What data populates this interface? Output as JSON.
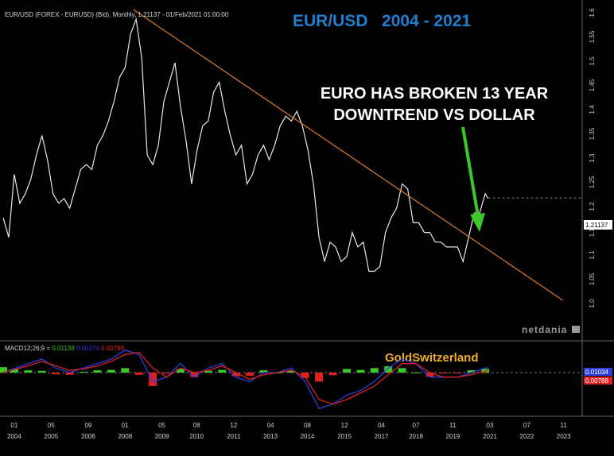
{
  "header": {
    "instrument_label": "EUR/USD (FOREX - EURUSD) (Bid), Monthly, 1.21137 - 01/Feb/2021 01:00:00",
    "big_title": "EUR/USD   2004 - 2021"
  },
  "annotation": {
    "line1": "EURO HAS BROKEN 13 YEAR",
    "line2": "DOWNTREND VS DOLLAR"
  },
  "brand": "GoldSwitzerland",
  "logo": "netdania",
  "macd": {
    "label_prefix": "MACD12;26;9 = ",
    "macd_value": "0.01138",
    "signal_value": "0.00374",
    "hist_value": "0.00788",
    "tag_top": "0.01034",
    "tag_bottom": "0.00788"
  },
  "last_price_tag": "1.21137",
  "colors": {
    "price_line": "#e8e8e8",
    "trend_line": "#e07a2a",
    "arrow": "#3cc828",
    "macd_line": "#2b3fe0",
    "signal_line": "#e02020",
    "hist_up": "#3cc828",
    "hist_down": "#e02020",
    "title": "#1f7fd0",
    "brand": "#f0b020"
  },
  "chart_data": [
    {
      "type": "line",
      "title": "EUR/USD   2004 - 2021",
      "xlabel": "",
      "ylabel": "",
      "ylim": [
        1.0,
        1.6
      ],
      "y_ticks": [
        "1.6",
        "1.55",
        "1.5",
        "1.45",
        "1.4",
        "1.35",
        "1.3",
        "1.25",
        "1.2",
        "1.15",
        "1.1",
        "1.05",
        "1.0"
      ],
      "x_ticks_months": [
        "01",
        "05",
        "09",
        "01",
        "05",
        "08",
        "12",
        "04",
        "08",
        "12",
        "04",
        "07",
        "11",
        "03",
        "07",
        "11"
      ],
      "x_ticks_years": [
        "2004",
        "2005",
        "2006",
        "2008",
        "2009",
        "2010",
        "2011",
        "2013",
        "2014",
        "2015",
        "2017",
        "2018",
        "2019",
        "2021",
        "2022",
        "2023"
      ],
      "x_tick_dates": [
        2004.0,
        2005.33,
        2006.67,
        2008.0,
        2009.33,
        2010.58,
        2011.92,
        2013.25,
        2014.58,
        2015.92,
        2017.25,
        2018.5,
        2019.83,
        2021.17,
        2022.5,
        2023.83
      ],
      "series": [
        {
          "x": [
            2003.6,
            2003.8,
            2004.0,
            2004.2,
            2004.4,
            2004.6,
            2004.8,
            2005.0,
            2005.2,
            2005.4,
            2005.6,
            2005.8,
            2006.0,
            2006.2,
            2006.4,
            2006.6,
            2006.8,
            2007.0,
            2007.2,
            2007.4,
            2007.6,
            2007.8,
            2008.0,
            2008.2,
            2008.4,
            2008.6,
            2008.8,
            2009.0,
            2009.2,
            2009.4,
            2009.6,
            2009.8,
            2010.0,
            2010.2,
            2010.4,
            2010.6,
            2010.8,
            2011.0,
            2011.2,
            2011.4,
            2011.6,
            2011.8,
            2012.0,
            2012.2,
            2012.4,
            2012.6,
            2012.8,
            2013.0,
            2013.2,
            2013.4,
            2013.6,
            2013.8,
            2014.0,
            2014.2,
            2014.4,
            2014.6,
            2014.8,
            2015.0,
            2015.2,
            2015.4,
            2015.6,
            2015.8,
            2016.0,
            2016.2,
            2016.4,
            2016.6,
            2016.8,
            2017.0,
            2017.2,
            2017.4,
            2017.6,
            2017.8,
            2018.0,
            2018.2,
            2018.4,
            2018.6,
            2018.8,
            2019.0,
            2019.2,
            2019.4,
            2019.6,
            2019.8,
            2020.0,
            2020.2,
            2020.4,
            2020.6,
            2020.8,
            2021.0,
            2021.1
          ],
          "values": [
            1.17,
            1.13,
            1.26,
            1.2,
            1.22,
            1.25,
            1.3,
            1.34,
            1.29,
            1.22,
            1.2,
            1.21,
            1.19,
            1.23,
            1.27,
            1.28,
            1.27,
            1.32,
            1.34,
            1.37,
            1.41,
            1.46,
            1.48,
            1.55,
            1.58,
            1.5,
            1.3,
            1.28,
            1.32,
            1.41,
            1.45,
            1.49,
            1.4,
            1.33,
            1.24,
            1.31,
            1.36,
            1.37,
            1.43,
            1.45,
            1.39,
            1.34,
            1.3,
            1.32,
            1.24,
            1.26,
            1.3,
            1.32,
            1.29,
            1.32,
            1.36,
            1.38,
            1.37,
            1.39,
            1.36,
            1.31,
            1.24,
            1.13,
            1.08,
            1.12,
            1.11,
            1.08,
            1.09,
            1.14,
            1.11,
            1.12,
            1.06,
            1.06,
            1.07,
            1.14,
            1.17,
            1.19,
            1.24,
            1.23,
            1.16,
            1.16,
            1.14,
            1.14,
            1.12,
            1.12,
            1.11,
            1.11,
            1.11,
            1.08,
            1.13,
            1.18,
            1.18,
            1.22,
            1.21
          ]
        },
        {
          "x": [
            2008.3,
            2023.8
          ],
          "values": [
            1.6,
            1.0
          ]
        }
      ]
    },
    {
      "type": "line",
      "title": "MACD12;26;9",
      "ylim": [
        -0.09,
        0.06
      ],
      "series": [
        {
          "x": [
            2003.6,
            2004.5,
            2005.0,
            2005.5,
            2006.0,
            2006.5,
            2007.0,
            2007.5,
            2008.0,
            2008.5,
            2009.0,
            2009.5,
            2010.0,
            2010.5,
            2011.0,
            2011.5,
            2012.0,
            2012.5,
            2013.0,
            2013.5,
            2014.0,
            2014.5,
            2015.0,
            2015.5,
            2016.0,
            2016.5,
            2017.0,
            2017.5,
            2018.0,
            2018.5,
            2019.0,
            2019.5,
            2020.0,
            2020.5,
            2021.0,
            2021.1
          ],
          "values": [
            0.0,
            0.02,
            0.03,
            0.01,
            0.0,
            0.01,
            0.02,
            0.03,
            0.05,
            0.04,
            -0.02,
            -0.01,
            0.02,
            -0.01,
            0.01,
            0.02,
            -0.01,
            -0.02,
            0.0,
            0.0,
            0.01,
            -0.02,
            -0.08,
            -0.07,
            -0.05,
            -0.04,
            -0.02,
            0.01,
            0.03,
            0.02,
            -0.01,
            -0.01,
            -0.01,
            0.0,
            0.01,
            0.011
          ]
        },
        {
          "x": [
            2003.6,
            2004.5,
            2005.0,
            2005.5,
            2006.0,
            2006.5,
            2007.0,
            2007.5,
            2008.0,
            2008.5,
            2009.0,
            2009.5,
            2010.0,
            2010.5,
            2011.0,
            2011.5,
            2012.0,
            2012.5,
            2013.0,
            2013.5,
            2014.0,
            2014.5,
            2015.0,
            2015.5,
            2016.0,
            2016.5,
            2017.0,
            2017.5,
            2018.0,
            2018.5,
            2019.0,
            2019.5,
            2020.0,
            2020.5,
            2021.0,
            2021.1
          ],
          "values": [
            0.0,
            0.015,
            0.025,
            0.015,
            0.005,
            0.008,
            0.015,
            0.025,
            0.04,
            0.045,
            0.01,
            -0.01,
            0.01,
            0.0,
            0.005,
            0.015,
            0.0,
            -0.015,
            -0.005,
            0.0,
            0.005,
            -0.01,
            -0.06,
            -0.07,
            -0.06,
            -0.045,
            -0.03,
            -0.005,
            0.02,
            0.02,
            0.0,
            -0.01,
            -0.01,
            -0.005,
            0.003,
            0.004
          ]
        }
      ],
      "histogram": {
        "x": [
          2003.6,
          2004.0,
          2004.5,
          2005.0,
          2005.5,
          2006.0,
          2006.5,
          2007.0,
          2007.5,
          2008.0,
          2008.5,
          2009.0,
          2009.5,
          2010.0,
          2010.5,
          2011.0,
          2011.5,
          2012.0,
          2012.5,
          2013.0,
          2013.5,
          2014.0,
          2014.5,
          2015.0,
          2015.5,
          2016.0,
          2016.5,
          2017.0,
          2017.5,
          2018.0,
          2018.5,
          2019.0,
          2019.5,
          2020.0,
          2020.5,
          2021.0
        ],
        "values": [
          0.012,
          0.008,
          0.005,
          0.004,
          -0.004,
          -0.005,
          0.002,
          0.005,
          0.006,
          0.01,
          -0.005,
          -0.03,
          -0.002,
          0.008,
          -0.01,
          0.004,
          0.006,
          -0.008,
          -0.007,
          0.005,
          0.0,
          0.004,
          -0.012,
          -0.02,
          -0.006,
          0.008,
          0.006,
          0.01,
          0.014,
          0.01,
          0.0,
          -0.009,
          -0.002,
          -0.001,
          0.005,
          0.008
        ]
      }
    }
  ]
}
